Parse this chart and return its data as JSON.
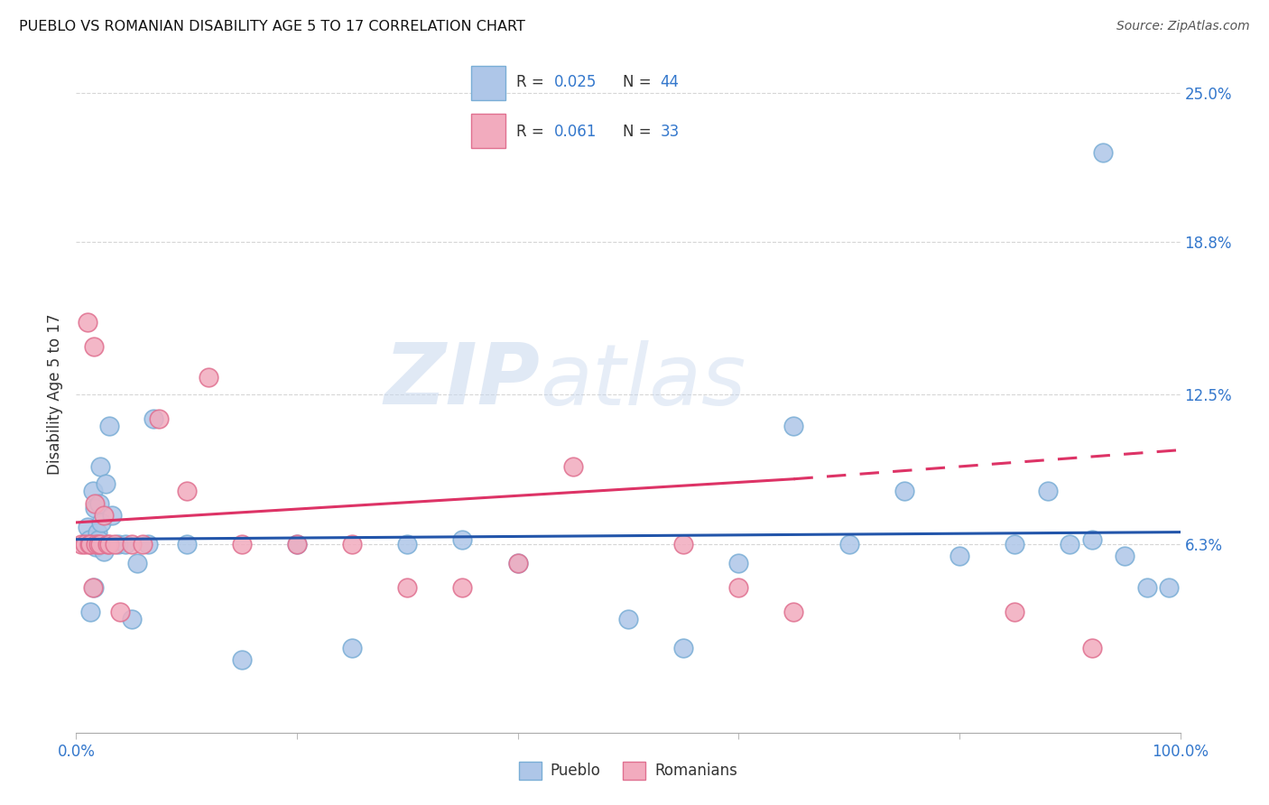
{
  "title": "PUEBLO VS ROMANIAN DISABILITY AGE 5 TO 17 CORRELATION CHART",
  "source": "Source: ZipAtlas.com",
  "ylabel": "Disability Age 5 to 17",
  "xlim": [
    0,
    100
  ],
  "ylim": [
    -1.5,
    26.5
  ],
  "pueblo_color": "#aec6e8",
  "romanian_color": "#f2abbe",
  "pueblo_edge": "#7aaed6",
  "romanian_edge": "#e07090",
  "trend_blue": "#2255aa",
  "trend_pink": "#dd3366",
  "bg_color": "#ffffff",
  "grid_color": "#cccccc",
  "ytick_vals": [
    6.3,
    12.5,
    18.8,
    25.0
  ],
  "ytick_labels": [
    "6.3%",
    "12.5%",
    "18.8%",
    "25.0%"
  ],
  "watermark_zip": "ZIP",
  "watermark_atlas": "atlas",
  "pueblo_x": [
    1.0,
    1.2,
    1.3,
    1.5,
    1.6,
    1.7,
    1.8,
    1.9,
    2.0,
    2.1,
    2.2,
    2.3,
    2.5,
    2.7,
    3.0,
    3.2,
    3.8,
    4.5,
    5.0,
    5.5,
    6.5,
    7.0,
    10.0,
    15.0,
    20.0,
    25.0,
    30.0,
    35.0,
    40.0,
    50.0,
    55.0,
    60.0,
    65.0,
    70.0,
    75.0,
    80.0,
    85.0,
    88.0,
    90.0,
    92.0,
    93.0,
    95.0,
    97.0,
    99.0
  ],
  "pueblo_y": [
    7.0,
    6.5,
    3.5,
    8.5,
    4.5,
    7.8,
    6.2,
    6.8,
    6.5,
    8.0,
    9.5,
    7.2,
    6.0,
    8.8,
    11.2,
    7.5,
    6.3,
    6.3,
    3.2,
    5.5,
    6.3,
    11.5,
    6.3,
    1.5,
    6.3,
    2.0,
    6.3,
    6.5,
    5.5,
    3.2,
    2.0,
    5.5,
    11.2,
    6.3,
    8.5,
    5.8,
    6.3,
    8.5,
    6.3,
    6.5,
    22.5,
    5.8,
    4.5,
    4.5
  ],
  "romanian_x": [
    0.5,
    0.8,
    1.0,
    1.2,
    1.3,
    1.5,
    1.6,
    1.7,
    1.8,
    2.0,
    2.2,
    2.5,
    2.8,
    3.0,
    3.5,
    4.0,
    5.0,
    6.0,
    7.5,
    10.0,
    12.0,
    15.0,
    20.0,
    25.0,
    30.0,
    35.0,
    40.0,
    45.0,
    55.0,
    60.0,
    65.0,
    85.0,
    92.0
  ],
  "romanian_y": [
    6.3,
    6.3,
    15.5,
    6.3,
    6.3,
    4.5,
    14.5,
    8.0,
    6.3,
    6.3,
    6.3,
    7.5,
    6.3,
    6.3,
    6.3,
    3.5,
    6.3,
    6.3,
    11.5,
    8.5,
    13.2,
    6.3,
    6.3,
    6.3,
    4.5,
    4.5,
    5.5,
    9.5,
    6.3,
    4.5,
    3.5,
    3.5,
    2.0
  ],
  "trend_blue_y0": 6.5,
  "trend_blue_y1": 6.8,
  "trend_pink_y0": 7.2,
  "trend_pink_solid_end_x": 65.0,
  "trend_pink_solid_end_y": 9.0,
  "trend_pink_dashed_end_y": 10.2
}
